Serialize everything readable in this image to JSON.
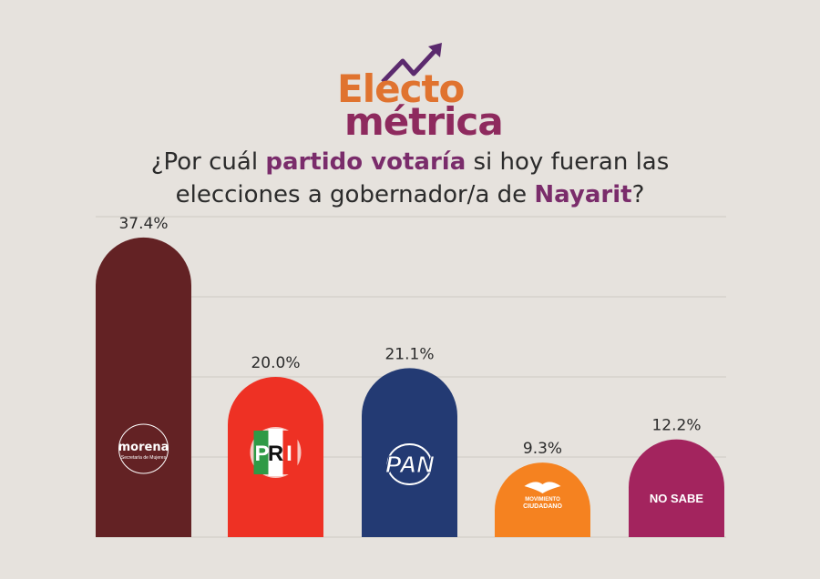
{
  "logo": {
    "line1": "Electo",
    "line2": "métrica",
    "icon": "trend-up-arrow-icon"
  },
  "colors": {
    "orange": "#e0732f",
    "purple": "#8e2a5e",
    "arrow": "#5b2a6e",
    "grid": "#cfcac4"
  },
  "chart_data": {
    "type": "bar",
    "title_parts": [
      "¿Por cuál ",
      "partido votaría",
      " si hoy fueran las",
      "elecciones a gobernador/a de ",
      "Nayarit",
      "?"
    ],
    "categories": [
      "morena",
      "PRI",
      "PAN",
      "MOVIMIENTO CIUDADANO",
      "NO SABE"
    ],
    "values": [
      37.4,
      20.0,
      21.1,
      9.3,
      12.2
    ],
    "value_labels": [
      "37.4%",
      "20.0%",
      "21.1%",
      "9.3%",
      "12.2%"
    ],
    "bar_colors": [
      "#632224",
      "#ee3124",
      "#233a73",
      "#f58220",
      "#a3245e"
    ],
    "logo_texts": {
      "morena_sub": "Secretaría de Mujeres",
      "mc_line1": "MOVIMIENTO",
      "mc_line2": "CIUDADANO"
    },
    "ylim": [
      0,
      40
    ],
    "grid": true,
    "xlabel": "",
    "ylabel": ""
  }
}
